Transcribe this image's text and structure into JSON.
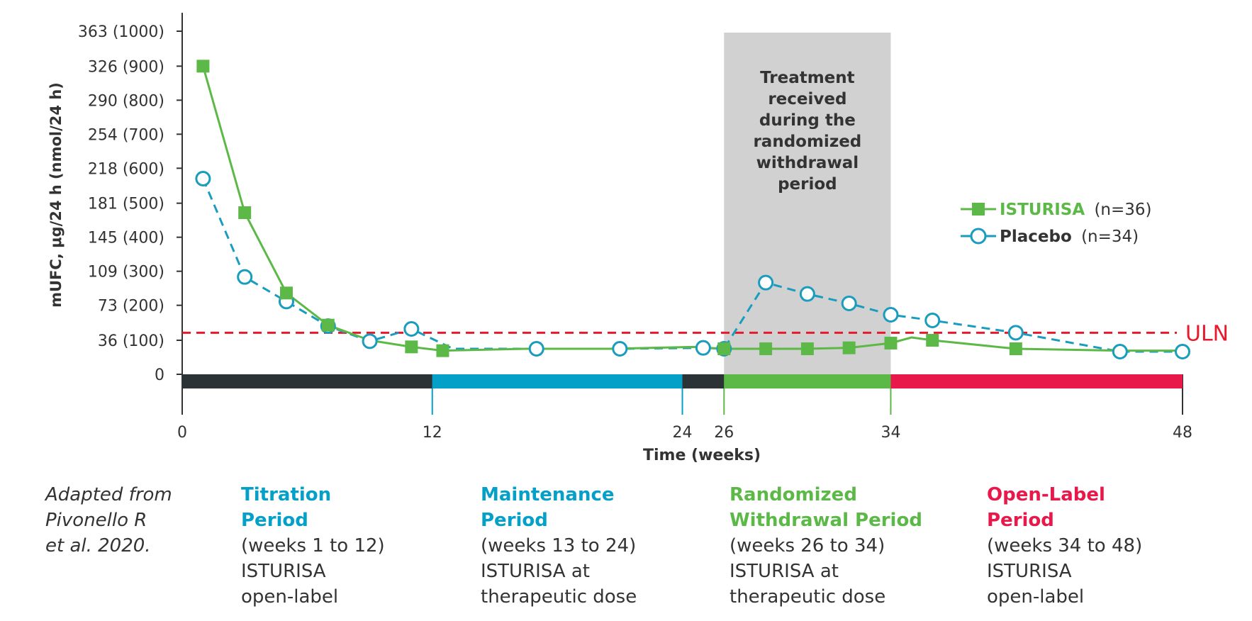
{
  "chart_data": {
    "type": "line",
    "ylabel": "mUFC, μg/24 h (nmol/24 h)",
    "xlabel": "Time (weeks)",
    "ylim": [
      0,
      363
    ],
    "xlim": [
      0,
      48
    ],
    "y_ticks": [
      {
        "value": 0,
        "label": "0"
      },
      {
        "value": 36,
        "label": "36 (100)"
      },
      {
        "value": 73,
        "label": "73 (200)"
      },
      {
        "value": 109,
        "label": "109 (300)"
      },
      {
        "value": 145,
        "label": "145 (400)"
      },
      {
        "value": 181,
        "label": "181 (500)"
      },
      {
        "value": 218,
        "label": "218 (600)"
      },
      {
        "value": 254,
        "label": "254 (700)"
      },
      {
        "value": 290,
        "label": "290 (800)"
      },
      {
        "value": 326,
        "label": "326 (900)"
      },
      {
        "value": 363,
        "label": "363 (1000)"
      }
    ],
    "x_ticks": [
      {
        "value": 0,
        "label": "0"
      },
      {
        "value": 12,
        "label": "12"
      },
      {
        "value": 24,
        "label": "24"
      },
      {
        "value": 26,
        "label": "26"
      },
      {
        "value": 34,
        "label": "34"
      },
      {
        "value": 48,
        "label": "48"
      }
    ],
    "reference_line": {
      "label": "ULN",
      "value": 44,
      "color": "#e8192c"
    },
    "shaded_region": {
      "x": [
        26,
        34
      ],
      "label": "Treatment received during the randomized withdrawal period",
      "color": "#d1d1d1"
    },
    "series": [
      {
        "name": "ISTURISA",
        "legend_suffix": "(n=36)",
        "color": "#5cb947",
        "marker": "square",
        "line": "solid",
        "points": [
          {
            "x": 1,
            "y": 326
          },
          {
            "x": 3,
            "y": 171
          },
          {
            "x": 5,
            "y": 86
          },
          {
            "x": 7,
            "y": 52
          },
          {
            "x": 9,
            "y": 36
          },
          {
            "x": 11,
            "y": 29
          },
          {
            "x": 12.5,
            "y": 25
          },
          {
            "x": 16.5,
            "y": 27
          },
          {
            "x": 20.5,
            "y": 27
          },
          {
            "x": 24.5,
            "y": 29
          },
          {
            "x": 26,
            "y": 27
          },
          {
            "x": 28,
            "y": 27
          },
          {
            "x": 30,
            "y": 27
          },
          {
            "x": 32,
            "y": 28
          },
          {
            "x": 34,
            "y": 33
          },
          {
            "x": 35,
            "y": 39
          },
          {
            "x": 36,
            "y": 36
          },
          {
            "x": 40,
            "y": 27
          },
          {
            "x": 45,
            "y": 25
          },
          {
            "x": 48,
            "y": 25
          }
        ],
        "marker_indices": [
          0,
          1,
          2,
          3,
          5,
          6,
          10,
          11,
          12,
          13,
          14,
          16,
          17
        ]
      },
      {
        "name": "Placebo",
        "legend_suffix": "(n=34)",
        "color": "#1a9cbf",
        "marker": "open-circle",
        "line": "dashed",
        "points": [
          {
            "x": 1,
            "y": 207
          },
          {
            "x": 3,
            "y": 103
          },
          {
            "x": 5,
            "y": 77
          },
          {
            "x": 7,
            "y": 51
          },
          {
            "x": 9,
            "y": 35
          },
          {
            "x": 11,
            "y": 48
          },
          {
            "x": 13,
            "y": 27
          },
          {
            "x": 17,
            "y": 27
          },
          {
            "x": 21,
            "y": 27
          },
          {
            "x": 25,
            "y": 28
          },
          {
            "x": 26,
            "y": 27
          },
          {
            "x": 28,
            "y": 97
          },
          {
            "x": 30,
            "y": 85
          },
          {
            "x": 32,
            "y": 75
          },
          {
            "x": 34,
            "y": 63
          },
          {
            "x": 36,
            "y": 57
          },
          {
            "x": 40,
            "y": 44
          },
          {
            "x": 45,
            "y": 24
          },
          {
            "x": 48,
            "y": 24
          }
        ],
        "marker_indices": [
          0,
          1,
          2,
          3,
          4,
          5,
          7,
          8,
          9,
          10,
          11,
          12,
          13,
          14,
          15,
          16,
          17,
          18
        ]
      }
    ],
    "phase_bar": [
      {
        "x": [
          0,
          12
        ],
        "color": "#2c3337"
      },
      {
        "x": [
          12,
          24
        ],
        "color": "#05a0c8"
      },
      {
        "x": [
          24,
          26
        ],
        "color": "#2c3337"
      },
      {
        "x": [
          26,
          34
        ],
        "color": "#5cb947"
      },
      {
        "x": [
          34,
          48
        ],
        "color": "#e8194a"
      }
    ]
  },
  "caption": {
    "lines": [
      "Adapted from",
      "Pivonello R",
      "et al. 2020."
    ]
  },
  "periods": [
    {
      "title_1": "Titration",
      "title_2": "Period",
      "line_1": "(weeks 1 to 12)",
      "line_2": "ISTURISA",
      "line_3": "open-label",
      "color": "#05a0c8"
    },
    {
      "title_1": "Maintenance",
      "title_2": "Period",
      "line_1": "(weeks 13 to 24)",
      "line_2": "ISTURISA at",
      "line_3": "therapeutic dose",
      "color": "#05a0c8"
    },
    {
      "title_1": "Randomized",
      "title_2": "Withdrawal Period",
      "line_1": "(weeks 26 to 34)",
      "line_2": "ISTURISA at",
      "line_3": "therapeutic dose",
      "color": "#5cb947"
    },
    {
      "title_1": "Open-Label",
      "title_2": "Period",
      "line_1": "(weeks 34 to 48)",
      "line_2": "ISTURISA",
      "line_3": "open-label",
      "color": "#e8194a"
    }
  ],
  "shade_label_lines": [
    "Treatment",
    "received",
    "during the",
    "randomized",
    "withdrawal",
    "period"
  ]
}
